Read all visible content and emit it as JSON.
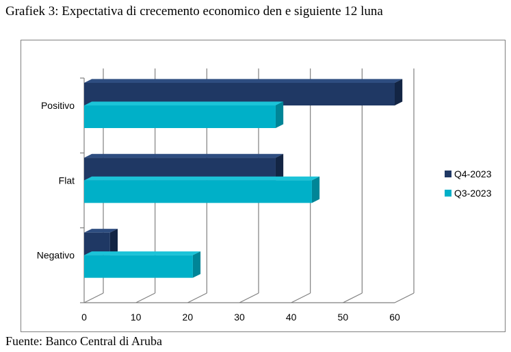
{
  "title": "Grafiek 3: Expectativa di crecemento economico den e siguiente 12 luna",
  "source": "Fuente: Banco Central di Aruba",
  "colors": {
    "q4_front": "#1f3864",
    "q4_top": "#2e4d80",
    "q4_side": "#132544",
    "q3_front": "#00b0c8",
    "q3_top": "#1bc3d8",
    "q3_side": "#008597",
    "grid": "#7f7f7f"
  },
  "chart_data": {
    "type": "bar",
    "orientation": "horizontal",
    "categories": [
      "Positivo",
      "Flat",
      "Negativo"
    ],
    "series": [
      {
        "name": "Q4-2023",
        "values": [
          60,
          37,
          5
        ]
      },
      {
        "name": "Q3-2023",
        "values": [
          37,
          44,
          21
        ]
      }
    ],
    "xlim": [
      0,
      60
    ],
    "xticks": [
      "0",
      "10",
      "20",
      "30",
      "40",
      "50",
      "60"
    ],
    "grid": true,
    "legend": "right"
  }
}
